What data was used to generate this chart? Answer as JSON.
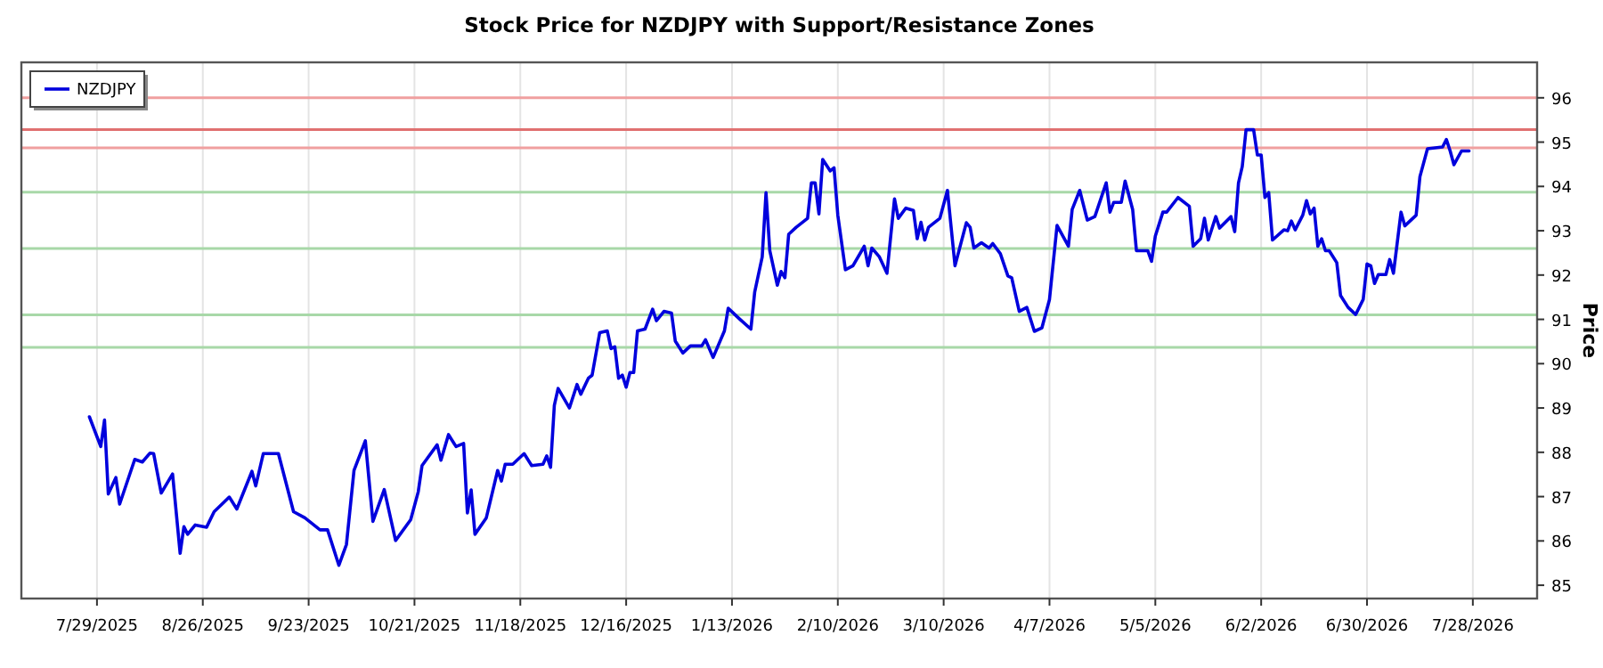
{
  "chart_data": {
    "type": "line",
    "title": "Stock Price for NZDJPY with Support/Resistance Zones",
    "ylabel": "Price",
    "x": [
      "2025-07-27",
      "2025-07-30",
      "2025-07-31",
      "2025-08-01",
      "2025-08-03",
      "2025-08-04",
      "2025-08-08",
      "2025-08-10",
      "2025-08-12",
      "2025-08-13",
      "2025-08-15",
      "2025-08-18",
      "2025-08-20",
      "2025-08-21",
      "2025-08-22",
      "2025-08-24",
      "2025-08-27",
      "2025-08-29",
      "2025-09-02",
      "2025-09-04",
      "2025-09-08",
      "2025-09-09",
      "2025-09-11",
      "2025-09-15",
      "2025-09-19",
      "2025-09-22",
      "2025-09-26",
      "2025-09-28",
      "2025-10-01",
      "2025-10-03",
      "2025-10-05",
      "2025-10-08",
      "2025-10-10",
      "2025-10-13",
      "2025-10-16",
      "2025-10-20",
      "2025-10-22",
      "2025-10-23",
      "2025-10-27",
      "2025-10-28",
      "2025-10-30",
      "2025-11-01",
      "2025-11-03",
      "2025-11-04",
      "2025-11-05",
      "2025-11-06",
      "2025-11-09",
      "2025-11-12",
      "2025-11-13",
      "2025-11-14",
      "2025-11-16",
      "2025-11-19",
      "2025-11-21",
      "2025-11-24",
      "2025-11-25",
      "2025-11-26",
      "2025-11-27",
      "2025-11-28",
      "2025-12-01",
      "2025-12-03",
      "2025-12-04",
      "2025-12-06",
      "2025-12-07",
      "2025-12-09",
      "2025-12-11",
      "2025-12-12",
      "2025-12-13",
      "2025-12-14",
      "2025-12-15",
      "2025-12-16",
      "2025-12-17",
      "2025-12-18",
      "2025-12-19",
      "2025-12-21",
      "2025-12-23",
      "2025-12-24",
      "2025-12-26",
      "2025-12-28",
      "2025-12-29",
      "2025-12-31",
      "2026-01-02",
      "2026-01-05",
      "2026-01-06",
      "2026-01-08",
      "2026-01-11",
      "2026-01-12",
      "2026-01-15",
      "2026-01-18",
      "2026-01-19",
      "2026-01-21",
      "2026-01-22",
      "2026-01-23",
      "2026-01-25",
      "2026-01-26",
      "2026-01-27",
      "2026-01-28",
      "2026-01-30",
      "2026-02-02",
      "2026-02-03",
      "2026-02-04",
      "2026-02-05",
      "2026-02-06",
      "2026-02-08",
      "2026-02-09",
      "2026-02-10",
      "2026-02-12",
      "2026-02-14",
      "2026-02-17",
      "2026-02-18",
      "2026-02-19",
      "2026-02-21",
      "2026-02-23",
      "2026-02-25",
      "2026-02-26",
      "2026-02-28",
      "2026-03-02",
      "2026-03-03",
      "2026-03-04",
      "2026-03-05",
      "2026-03-06",
      "2026-03-09",
      "2026-03-11",
      "2026-03-13",
      "2026-03-16",
      "2026-03-17",
      "2026-03-18",
      "2026-03-20",
      "2026-03-22",
      "2026-03-23",
      "2026-03-25",
      "2026-03-27",
      "2026-03-28",
      "2026-03-30",
      "2026-04-01",
      "2026-04-03",
      "2026-04-05",
      "2026-04-07",
      "2026-04-09",
      "2026-04-12",
      "2026-04-13",
      "2026-04-15",
      "2026-04-17",
      "2026-04-19",
      "2026-04-22",
      "2026-04-23",
      "2026-04-24",
      "2026-04-26",
      "2026-04-27",
      "2026-04-29",
      "2026-04-30",
      "2026-05-03",
      "2026-05-04",
      "2026-05-05",
      "2026-05-07",
      "2026-05-08",
      "2026-05-11",
      "2026-05-14",
      "2026-05-15",
      "2026-05-17",
      "2026-05-18",
      "2026-05-19",
      "2026-05-21",
      "2026-05-22",
      "2026-05-25",
      "2026-05-26",
      "2026-05-27",
      "2026-05-28",
      "2026-05-29",
      "2026-05-31",
      "2026-06-01",
      "2026-06-02",
      "2026-06-03",
      "2026-06-04",
      "2026-06-05",
      "2026-06-08",
      "2026-06-09",
      "2026-06-10",
      "2026-06-11",
      "2026-06-13",
      "2026-06-14",
      "2026-06-15",
      "2026-06-16",
      "2026-06-17",
      "2026-06-18",
      "2026-06-19",
      "2026-06-20",
      "2026-06-22",
      "2026-06-23",
      "2026-06-25",
      "2026-06-27",
      "2026-06-29",
      "2026-06-30",
      "2026-07-01",
      "2026-07-02",
      "2026-07-03",
      "2026-07-05",
      "2026-07-06",
      "2026-07-07",
      "2026-07-09",
      "2026-07-10",
      "2026-07-13",
      "2026-07-14",
      "2026-07-16",
      "2026-07-20",
      "2026-07-21",
      "2026-07-22",
      "2026-07-23",
      "2026-07-25",
      "2026-07-26",
      "2026-07-27"
    ],
    "series": [
      {
        "name": "NZDJPY",
        "color": "#0000dd",
        "values": [
          88.8,
          88.13,
          88.73,
          87.06,
          87.43,
          86.83,
          87.84,
          87.78,
          87.98,
          87.97,
          87.08,
          87.51,
          85.72,
          86.32,
          86.15,
          86.36,
          86.31,
          86.66,
          86.99,
          86.72,
          87.57,
          87.24,
          87.97,
          87.97,
          86.66,
          86.52,
          86.25,
          86.25,
          85.45,
          85.92,
          87.59,
          88.26,
          86.44,
          87.16,
          86.01,
          86.48,
          87.11,
          87.7,
          88.17,
          87.82,
          88.4,
          88.13,
          88.2,
          86.63,
          87.15,
          86.15,
          86.52,
          87.59,
          87.35,
          87.73,
          87.73,
          87.97,
          87.7,
          87.73,
          87.92,
          87.66,
          89.06,
          89.44,
          89.0,
          89.53,
          89.31,
          89.67,
          89.74,
          90.7,
          90.74,
          90.34,
          90.38,
          89.67,
          89.74,
          89.47,
          89.8,
          89.8,
          90.74,
          90.78,
          91.23,
          90.97,
          91.18,
          91.14,
          90.51,
          90.24,
          90.4,
          90.4,
          90.54,
          90.14,
          90.74,
          91.25,
          91.01,
          90.78,
          91.61,
          92.41,
          93.86,
          92.55,
          91.77,
          92.08,
          91.94,
          92.92,
          93.08,
          93.28,
          94.08,
          94.08,
          93.38,
          94.61,
          94.35,
          94.42,
          93.35,
          92.12,
          92.21,
          92.65,
          92.21,
          92.61,
          92.41,
          92.04,
          93.72,
          93.28,
          93.51,
          93.46,
          92.82,
          93.19,
          92.79,
          93.08,
          93.28,
          93.91,
          92.21,
          93.18,
          93.08,
          92.61,
          92.73,
          92.61,
          92.71,
          92.48,
          91.98,
          91.94,
          91.18,
          91.27,
          90.73,
          90.81,
          91.45,
          93.12,
          92.65,
          93.48,
          93.91,
          93.24,
          93.32,
          94.08,
          93.42,
          93.64,
          93.64,
          94.12,
          93.48,
          92.55,
          92.55,
          92.31,
          92.88,
          93.42,
          93.42,
          93.75,
          93.55,
          92.65,
          92.82,
          93.28,
          92.79,
          93.32,
          93.06,
          93.32,
          92.98,
          94.08,
          94.45,
          95.28,
          95.28,
          94.71,
          94.71,
          93.75,
          93.86,
          92.79,
          93.02,
          93.0,
          93.22,
          93.02,
          93.35,
          93.68,
          93.38,
          93.51,
          92.65,
          92.82,
          92.55,
          92.55,
          92.28,
          91.54,
          91.27,
          91.11,
          91.45,
          92.25,
          92.21,
          91.81,
          92.01,
          92.01,
          92.35,
          92.04,
          93.42,
          93.11,
          93.35,
          94.22,
          94.85,
          94.89,
          95.06,
          94.8,
          94.49,
          94.8,
          94.8,
          94.8
        ]
      }
    ],
    "ref_lines": [
      {
        "axis": "y",
        "value": 96.0,
        "color": "#f0a0a0"
      },
      {
        "axis": "y",
        "value": 95.28,
        "color": "#e07070"
      },
      {
        "axis": "y",
        "value": 94.87,
        "color": "#f0a0a0"
      },
      {
        "axis": "y",
        "value": 93.87,
        "color": "#a8d8a8"
      },
      {
        "axis": "y",
        "value": 92.6,
        "color": "#a8d8a8"
      },
      {
        "axis": "y",
        "value": 91.1,
        "color": "#a8d8a8"
      },
      {
        "axis": "y",
        "value": 90.37,
        "color": "#a8d8a8"
      }
    ],
    "xlim": [
      "2025-07-09",
      "2026-08-14"
    ],
    "xticks": [
      {
        "value": "2025-07-29",
        "label": "7/29/2025"
      },
      {
        "value": "2025-08-26",
        "label": "8/26/2025"
      },
      {
        "value": "2025-09-23",
        "label": "9/23/2025"
      },
      {
        "value": "2025-10-21",
        "label": "10/21/2025"
      },
      {
        "value": "2025-11-18",
        "label": "11/18/2025"
      },
      {
        "value": "2025-12-16",
        "label": "12/16/2025"
      },
      {
        "value": "2026-01-13",
        "label": "1/13/2026"
      },
      {
        "value": "2026-02-10",
        "label": "2/10/2026"
      },
      {
        "value": "2026-03-10",
        "label": "3/10/2026"
      },
      {
        "value": "2026-04-07",
        "label": "4/7/2026"
      },
      {
        "value": "2026-05-05",
        "label": "5/5/2026"
      },
      {
        "value": "2026-06-02",
        "label": "6/2/2026"
      },
      {
        "value": "2026-06-30",
        "label": "6/30/2026"
      },
      {
        "value": "2026-07-28",
        "label": "7/28/2026"
      }
    ],
    "ylim": [
      84.7,
      96.8
    ],
    "yticks": [
      85,
      86,
      87,
      88,
      89,
      90,
      91,
      92,
      93,
      94,
      95,
      96
    ],
    "grid": "x",
    "legend": "top left",
    "line_style": "solid",
    "marker": "none"
  }
}
